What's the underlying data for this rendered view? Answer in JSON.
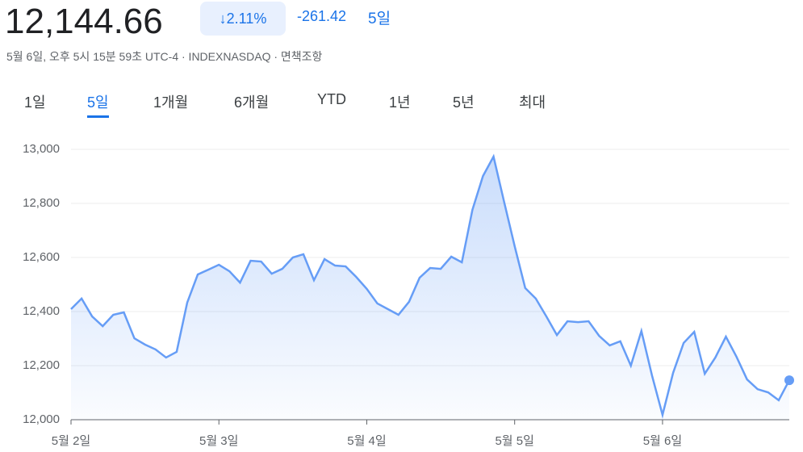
{
  "header": {
    "price": "12,144.66",
    "change_pct": "↓2.11%",
    "change_abs": "-261.42",
    "period": "5일",
    "meta": "5월 6일, 오후 5시 15분 59초 UTC-4 · INDEXNASDAQ · 면책조항"
  },
  "tabs": [
    "1일",
    "5일",
    "1개월",
    "6개월",
    "YTD",
    "1년",
    "5년",
    "최대"
  ],
  "chart_data": {
    "type": "line",
    "color": "#669df6",
    "categories": [
      "5월 2일",
      null,
      null,
      null,
      null,
      null,
      null,
      null,
      null,
      null,
      null,
      null,
      null,
      null,
      "5월 3일",
      null,
      null,
      null,
      null,
      null,
      null,
      null,
      null,
      null,
      null,
      null,
      null,
      null,
      "5월 4일",
      null,
      null,
      null,
      null,
      null,
      null,
      null,
      null,
      null,
      null,
      null,
      null,
      null,
      "5월 5일",
      null,
      null,
      null,
      null,
      null,
      null,
      null,
      null,
      null,
      null,
      null,
      null,
      null,
      "5월 6일",
      null,
      null,
      null,
      null,
      null,
      null,
      null,
      null,
      null,
      null,
      null,
      null
    ],
    "values": [
      12409,
      12448,
      12382,
      12346,
      12388,
      12397,
      12301,
      12278,
      12260,
      12230,
      12251,
      12433,
      12537,
      12555,
      12573,
      12549,
      12507,
      12588,
      12585,
      12540,
      12558,
      12600,
      12612,
      12516,
      12594,
      12570,
      12567,
      12528,
      12484,
      12430,
      12409,
      12388,
      12436,
      12525,
      12561,
      12558,
      12603,
      12582,
      12776,
      12901,
      12973,
      12806,
      12642,
      12487,
      12448,
      12382,
      12313,
      12364,
      12361,
      12364,
      12310,
      12275,
      12290,
      12200,
      12328,
      12164,
      12018,
      12173,
      12284,
      12325,
      12170,
      12230,
      12307,
      12233,
      12149,
      12113,
      12101,
      12072,
      12146
    ],
    "ylim": [
      12000,
      13000
    ],
    "yticks": [
      {
        "value": 12000,
        "label": "12,000"
      },
      {
        "value": 12200,
        "label": "12,200"
      },
      {
        "value": 12400,
        "label": "12,400"
      },
      {
        "value": 12600,
        "label": "12,600"
      },
      {
        "value": 12800,
        "label": "12,800"
      },
      {
        "value": 13000,
        "label": "13,000"
      }
    ],
    "grid": true
  }
}
